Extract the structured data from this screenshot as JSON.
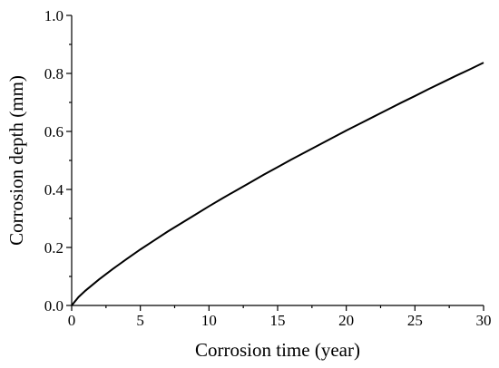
{
  "chart_data": {
    "type": "line",
    "title": "",
    "xlabel": "Corrosion time (year)",
    "ylabel": "Corrosion depth (mm)",
    "xlim": [
      0,
      30
    ],
    "ylim": [
      0.0,
      1.0
    ],
    "x_ticks": [
      "0",
      "5",
      "10",
      "15",
      "20",
      "25",
      "30"
    ],
    "y_ticks": [
      "0.0",
      "0.2",
      "0.4",
      "0.6",
      "0.8",
      "1.0"
    ],
    "grid": false,
    "legend": "none",
    "series": [
      {
        "color": "#000000",
        "x": [
          0,
          0.5,
          1,
          2,
          3,
          4,
          5,
          6,
          7,
          8,
          9,
          10,
          11,
          12,
          13,
          14,
          15,
          16,
          17,
          18,
          19,
          20,
          21,
          22,
          23,
          24,
          25,
          26,
          27,
          28,
          29,
          30
        ],
        "y": [
          0.0,
          0.029,
          0.051,
          0.09,
          0.126,
          0.16,
          0.193,
          0.224,
          0.255,
          0.284,
          0.313,
          0.342,
          0.37,
          0.397,
          0.424,
          0.451,
          0.477,
          0.503,
          0.528,
          0.553,
          0.578,
          0.603,
          0.627,
          0.651,
          0.675,
          0.699,
          0.722,
          0.746,
          0.769,
          0.792,
          0.814,
          0.837
        ]
      }
    ]
  }
}
